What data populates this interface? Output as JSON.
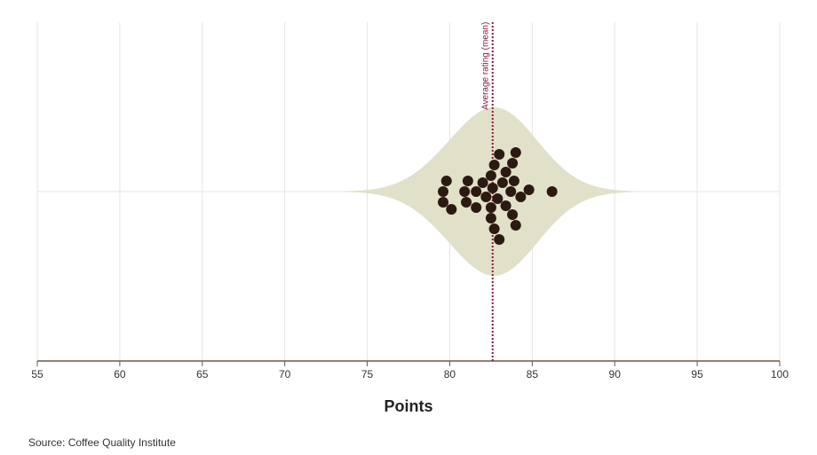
{
  "chart_data": {
    "type": "violin",
    "x_label": "Points",
    "source": "Source: Coffee Quality Institute",
    "values": [
      82.5,
      82.7,
      83.0,
      83.8,
      83.9,
      79.8,
      80.9,
      81.6,
      82.5,
      83.2,
      84.3,
      80.1,
      81.0,
      82.0,
      82.7,
      83.4,
      84.0,
      84.8,
      86.2,
      79.6,
      81.6,
      82.5,
      83.4,
      84.0,
      79.6,
      81.1,
      82.2,
      83.0,
      83.8,
      82.9,
      82.6,
      83.7
    ],
    "mean": 82.6,
    "mean_label": "Average rating (mean)",
    "xlim": [
      55,
      100
    ],
    "xticks": [
      55,
      60,
      65,
      70,
      75,
      80,
      85,
      90,
      95,
      100
    ],
    "grid": true,
    "point_color": "#2b1a12",
    "violin_color": "#e1e1c9",
    "mean_color": "#8b1a3a"
  }
}
